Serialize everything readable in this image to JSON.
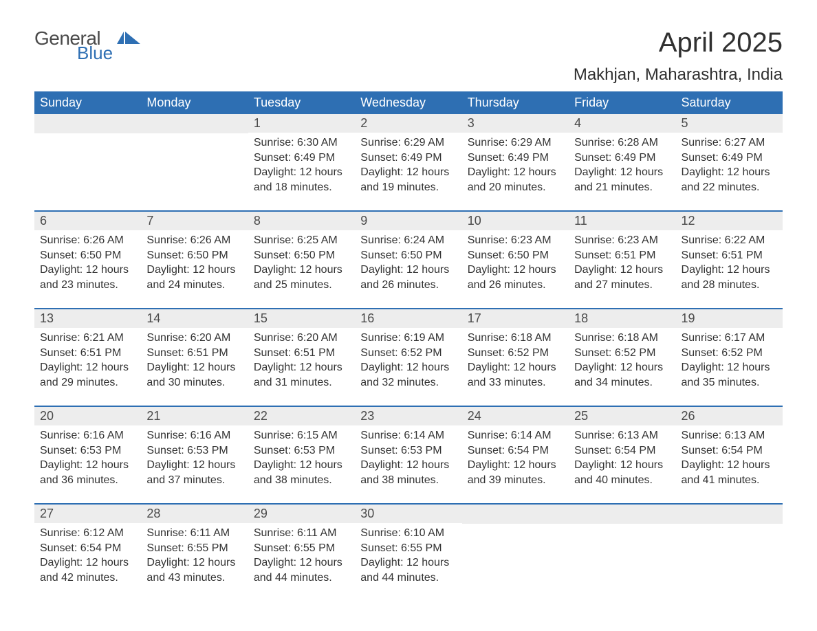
{
  "logo": {
    "main": "General",
    "sub": "Blue",
    "icon_color": "#2e6fb3"
  },
  "header": {
    "month_title": "April 2025",
    "location": "Makhjan, Maharashtra, India"
  },
  "colors": {
    "header_bg": "#2e6fb3",
    "header_text": "#ffffff",
    "day_number_bg": "#ededed",
    "body_text": "#333333",
    "page_bg": "#ffffff",
    "row_border": "#2e6fb3"
  },
  "typography": {
    "month_title_fontsize": 40,
    "location_fontsize": 24,
    "weekday_fontsize": 18,
    "daynum_fontsize": 18,
    "body_fontsize": 16,
    "font_family": "Arial"
  },
  "weekdays": [
    "Sunday",
    "Monday",
    "Tuesday",
    "Wednesday",
    "Thursday",
    "Friday",
    "Saturday"
  ],
  "weeks": [
    [
      null,
      null,
      {
        "day": "1",
        "sunrise": "Sunrise: 6:30 AM",
        "sunset": "Sunset: 6:49 PM",
        "day1": "Daylight: 12 hours",
        "day2": "and 18 minutes."
      },
      {
        "day": "2",
        "sunrise": "Sunrise: 6:29 AM",
        "sunset": "Sunset: 6:49 PM",
        "day1": "Daylight: 12 hours",
        "day2": "and 19 minutes."
      },
      {
        "day": "3",
        "sunrise": "Sunrise: 6:29 AM",
        "sunset": "Sunset: 6:49 PM",
        "day1": "Daylight: 12 hours",
        "day2": "and 20 minutes."
      },
      {
        "day": "4",
        "sunrise": "Sunrise: 6:28 AM",
        "sunset": "Sunset: 6:49 PM",
        "day1": "Daylight: 12 hours",
        "day2": "and 21 minutes."
      },
      {
        "day": "5",
        "sunrise": "Sunrise: 6:27 AM",
        "sunset": "Sunset: 6:49 PM",
        "day1": "Daylight: 12 hours",
        "day2": "and 22 minutes."
      }
    ],
    [
      {
        "day": "6",
        "sunrise": "Sunrise: 6:26 AM",
        "sunset": "Sunset: 6:50 PM",
        "day1": "Daylight: 12 hours",
        "day2": "and 23 minutes."
      },
      {
        "day": "7",
        "sunrise": "Sunrise: 6:26 AM",
        "sunset": "Sunset: 6:50 PM",
        "day1": "Daylight: 12 hours",
        "day2": "and 24 minutes."
      },
      {
        "day": "8",
        "sunrise": "Sunrise: 6:25 AM",
        "sunset": "Sunset: 6:50 PM",
        "day1": "Daylight: 12 hours",
        "day2": "and 25 minutes."
      },
      {
        "day": "9",
        "sunrise": "Sunrise: 6:24 AM",
        "sunset": "Sunset: 6:50 PM",
        "day1": "Daylight: 12 hours",
        "day2": "and 26 minutes."
      },
      {
        "day": "10",
        "sunrise": "Sunrise: 6:23 AM",
        "sunset": "Sunset: 6:50 PM",
        "day1": "Daylight: 12 hours",
        "day2": "and 26 minutes."
      },
      {
        "day": "11",
        "sunrise": "Sunrise: 6:23 AM",
        "sunset": "Sunset: 6:51 PM",
        "day1": "Daylight: 12 hours",
        "day2": "and 27 minutes."
      },
      {
        "day": "12",
        "sunrise": "Sunrise: 6:22 AM",
        "sunset": "Sunset: 6:51 PM",
        "day1": "Daylight: 12 hours",
        "day2": "and 28 minutes."
      }
    ],
    [
      {
        "day": "13",
        "sunrise": "Sunrise: 6:21 AM",
        "sunset": "Sunset: 6:51 PM",
        "day1": "Daylight: 12 hours",
        "day2": "and 29 minutes."
      },
      {
        "day": "14",
        "sunrise": "Sunrise: 6:20 AM",
        "sunset": "Sunset: 6:51 PM",
        "day1": "Daylight: 12 hours",
        "day2": "and 30 minutes."
      },
      {
        "day": "15",
        "sunrise": "Sunrise: 6:20 AM",
        "sunset": "Sunset: 6:51 PM",
        "day1": "Daylight: 12 hours",
        "day2": "and 31 minutes."
      },
      {
        "day": "16",
        "sunrise": "Sunrise: 6:19 AM",
        "sunset": "Sunset: 6:52 PM",
        "day1": "Daylight: 12 hours",
        "day2": "and 32 minutes."
      },
      {
        "day": "17",
        "sunrise": "Sunrise: 6:18 AM",
        "sunset": "Sunset: 6:52 PM",
        "day1": "Daylight: 12 hours",
        "day2": "and 33 minutes."
      },
      {
        "day": "18",
        "sunrise": "Sunrise: 6:18 AM",
        "sunset": "Sunset: 6:52 PM",
        "day1": "Daylight: 12 hours",
        "day2": "and 34 minutes."
      },
      {
        "day": "19",
        "sunrise": "Sunrise: 6:17 AM",
        "sunset": "Sunset: 6:52 PM",
        "day1": "Daylight: 12 hours",
        "day2": "and 35 minutes."
      }
    ],
    [
      {
        "day": "20",
        "sunrise": "Sunrise: 6:16 AM",
        "sunset": "Sunset: 6:53 PM",
        "day1": "Daylight: 12 hours",
        "day2": "and 36 minutes."
      },
      {
        "day": "21",
        "sunrise": "Sunrise: 6:16 AM",
        "sunset": "Sunset: 6:53 PM",
        "day1": "Daylight: 12 hours",
        "day2": "and 37 minutes."
      },
      {
        "day": "22",
        "sunrise": "Sunrise: 6:15 AM",
        "sunset": "Sunset: 6:53 PM",
        "day1": "Daylight: 12 hours",
        "day2": "and 38 minutes."
      },
      {
        "day": "23",
        "sunrise": "Sunrise: 6:14 AM",
        "sunset": "Sunset: 6:53 PM",
        "day1": "Daylight: 12 hours",
        "day2": "and 38 minutes."
      },
      {
        "day": "24",
        "sunrise": "Sunrise: 6:14 AM",
        "sunset": "Sunset: 6:54 PM",
        "day1": "Daylight: 12 hours",
        "day2": "and 39 minutes."
      },
      {
        "day": "25",
        "sunrise": "Sunrise: 6:13 AM",
        "sunset": "Sunset: 6:54 PM",
        "day1": "Daylight: 12 hours",
        "day2": "and 40 minutes."
      },
      {
        "day": "26",
        "sunrise": "Sunrise: 6:13 AM",
        "sunset": "Sunset: 6:54 PM",
        "day1": "Daylight: 12 hours",
        "day2": "and 41 minutes."
      }
    ],
    [
      {
        "day": "27",
        "sunrise": "Sunrise: 6:12 AM",
        "sunset": "Sunset: 6:54 PM",
        "day1": "Daylight: 12 hours",
        "day2": "and 42 minutes."
      },
      {
        "day": "28",
        "sunrise": "Sunrise: 6:11 AM",
        "sunset": "Sunset: 6:55 PM",
        "day1": "Daylight: 12 hours",
        "day2": "and 43 minutes."
      },
      {
        "day": "29",
        "sunrise": "Sunrise: 6:11 AM",
        "sunset": "Sunset: 6:55 PM",
        "day1": "Daylight: 12 hours",
        "day2": "and 44 minutes."
      },
      {
        "day": "30",
        "sunrise": "Sunrise: 6:10 AM",
        "sunset": "Sunset: 6:55 PM",
        "day1": "Daylight: 12 hours",
        "day2": "and 44 minutes."
      },
      null,
      null,
      null
    ]
  ]
}
